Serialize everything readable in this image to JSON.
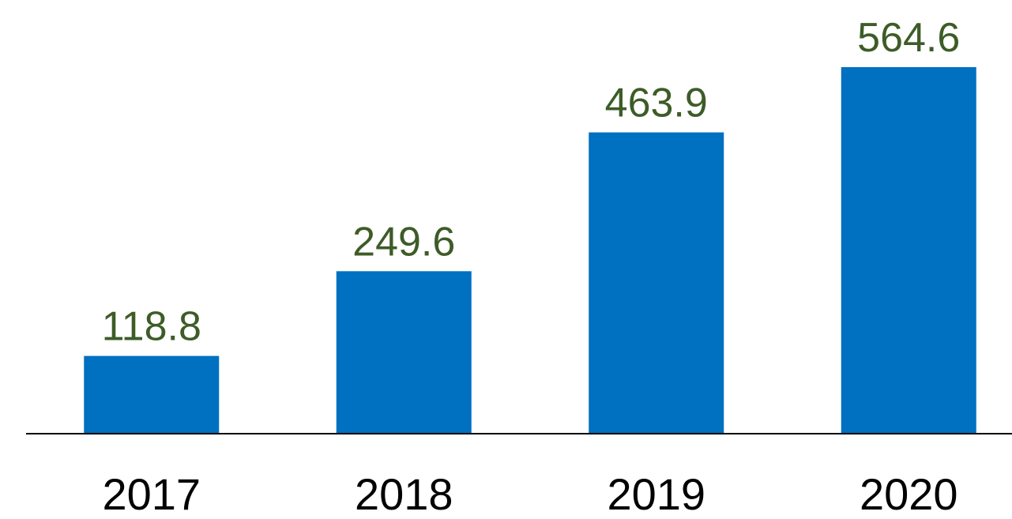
{
  "chart_data": {
    "type": "bar",
    "categories": [
      "2017",
      "2018",
      "2019",
      "2020"
    ],
    "values": [
      118.8,
      249.6,
      463.9,
      564.6
    ],
    "color": "#0070c0"
  }
}
